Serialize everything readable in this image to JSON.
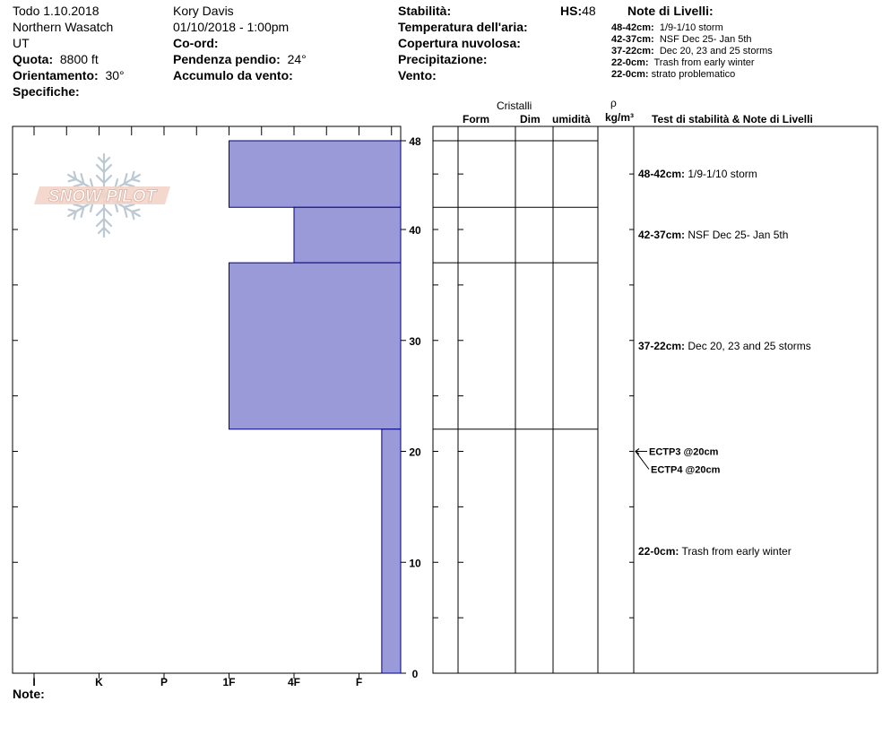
{
  "header": {
    "col1": {
      "title": "Todo 1.10.2018",
      "range": "Northern Wasatch",
      "state": "UT",
      "elevation_label": "Quota:",
      "elevation_value": "8800 ft",
      "aspect_label": "Orientamento:",
      "aspect_value": "30°",
      "specifics_label": "Specifiche:"
    },
    "col2": {
      "observer": "Kory Davis",
      "datetime": "01/10/2018 - 1:00pm",
      "coords_label": "Co-ord:",
      "slope_label": "Pendenza pendio:",
      "slope_value": "24°",
      "wind_loading_label": "Accumulo da vento:"
    },
    "col3": {
      "stability_label": "Stabilità:",
      "air_temp_label": "Temperatura dell'aria:",
      "cloud_label": "Copertura nuvolosa:",
      "precip_label": "Precipitazione:",
      "wind_label": "Vento:",
      "hs_label": "HS:",
      "hs_value": "48"
    },
    "layer_notes": {
      "title": "Note di Livelli:",
      "items": [
        {
          "range": "48-42cm:",
          "text": "1/9-1/10 storm"
        },
        {
          "range": "42-37cm:",
          "text": "NSF Dec 25- Jan 5th"
        },
        {
          "range": "37-22cm:",
          "text": "Dec 20, 23 and 25 storms"
        },
        {
          "range": "22-0cm:",
          "text": "Trash from early winter"
        },
        {
          "range": "22-0cm:",
          "text": "strato problematico"
        }
      ]
    }
  },
  "columns": {
    "crystals": "Cristalli",
    "form": "Form",
    "dim": "Dim",
    "humidity": "umidità",
    "rho": "ρ",
    "density_unit": "kg/m³",
    "tests_notes": "Test di stabilità & Note di Livelli"
  },
  "logo_text": "SNOW PILOT",
  "note_label": "Note:",
  "chart_data": {
    "type": "bar",
    "orientation": "horizontal-step",
    "title": "",
    "xlabel": "",
    "ylabel": "",
    "x_categories": [
      "I",
      "K",
      "P",
      "1F",
      "4F",
      "F"
    ],
    "y_ticks": [
      0,
      10,
      20,
      30,
      40,
      48
    ],
    "ylim": [
      0,
      48
    ],
    "colors": {
      "fill": "#9a9ad8",
      "stroke": "#000080"
    },
    "layers": [
      {
        "top": 48,
        "bottom": 42,
        "hardness": "1F",
        "hardness_index": 4
      },
      {
        "top": 42,
        "bottom": 37,
        "hardness": "4F",
        "hardness_index": 5
      },
      {
        "top": 37,
        "bottom": 22,
        "hardness": "1F",
        "hardness_index": 4
      },
      {
        "top": 22,
        "bottom": 0,
        "hardness": "F",
        "hardness_index": 6.35
      }
    ],
    "layer_boundaries": [
      48,
      42,
      37,
      22
    ],
    "layer_notes": [
      {
        "depth": 45,
        "range": "48-42cm:",
        "text": "1/9-1/10 storm"
      },
      {
        "depth": 39.5,
        "range": "42-37cm:",
        "text": "NSF Dec 25- Jan 5th"
      },
      {
        "depth": 29.5,
        "range": "37-22cm:",
        "text": "Dec 20, 23 and 25 storms"
      },
      {
        "depth": 11,
        "range": "22-0cm:",
        "text": "Trash from early winter"
      }
    ],
    "stability_tests": [
      {
        "depth": 20,
        "label": "ECTP3 @20cm"
      },
      {
        "depth": 20,
        "label": "ECTP4 @20cm"
      }
    ]
  }
}
